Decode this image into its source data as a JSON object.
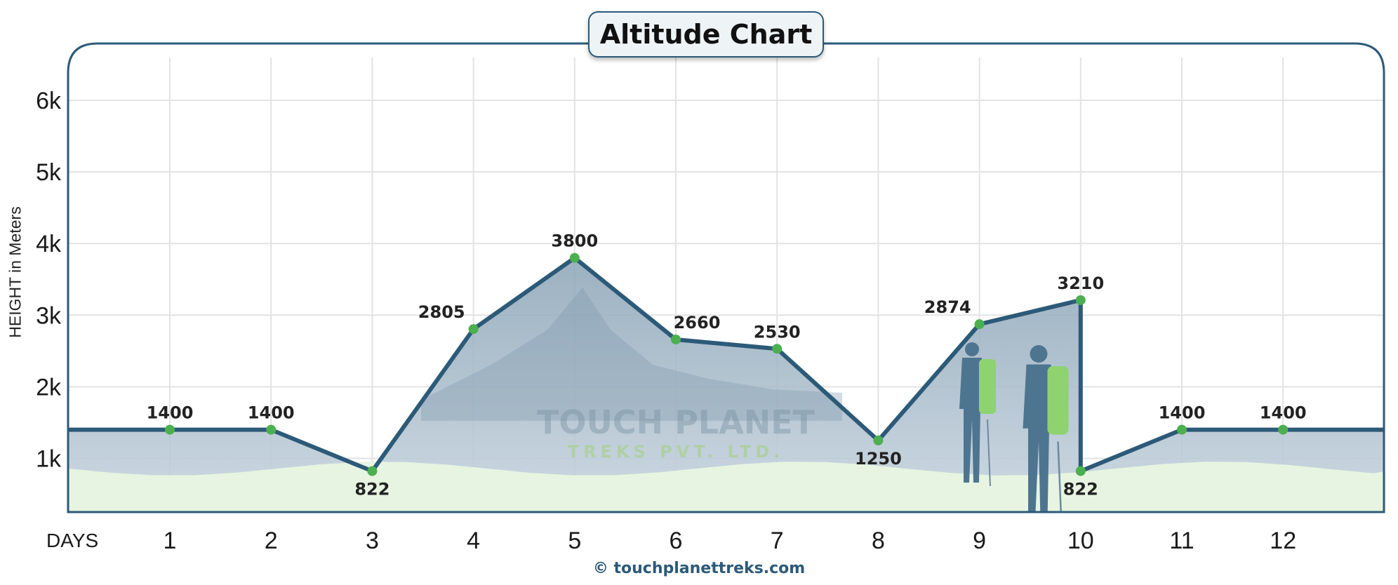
{
  "chart_data": {
    "type": "line",
    "title": "Altitude Chart",
    "ylabel": "HEIGHT in Meters",
    "xlabel": "DAYS",
    "x": [
      1,
      2,
      3,
      4,
      5,
      6,
      7,
      8,
      9,
      10,
      10,
      11,
      12
    ],
    "series": [
      {
        "values": [
          1400,
          1400,
          822,
          2805,
          3800,
          2660,
          2530,
          1250,
          2874,
          3210,
          822,
          1400,
          1400
        ],
        "labels": [
          "1400",
          "1400",
          "822",
          "2805",
          "3800",
          "2660",
          "2530",
          "1250",
          "2874",
          "3210",
          "822",
          "1400",
          "1400"
        ]
      }
    ],
    "ylim": [
      250,
      6500
    ],
    "yticks": [
      1000,
      2000,
      3000,
      4000,
      5000,
      6000
    ],
    "ytick_labels": [
      "1k",
      "2k",
      "3k",
      "4k",
      "5k",
      "6k"
    ],
    "xticks": [
      1,
      2,
      3,
      4,
      5,
      6,
      7,
      8,
      9,
      10,
      11,
      12
    ],
    "xtick_labels": [
      "1",
      "2",
      "3",
      "4",
      "5",
      "6",
      "7",
      "8",
      "9",
      "10",
      "11",
      "12"
    ],
    "grid": true,
    "colors": {
      "line": "#2c5a78",
      "marker": "#4caf50",
      "fill": "#9fb4c5",
      "ground": "#e6f4e1"
    }
  },
  "watermark": {
    "line1": "TOUCH PLANET",
    "line2": "TREKS PVT. LTD."
  },
  "footer": {
    "copyright_symbol": "©",
    "url": "touchplanettreks.com"
  }
}
